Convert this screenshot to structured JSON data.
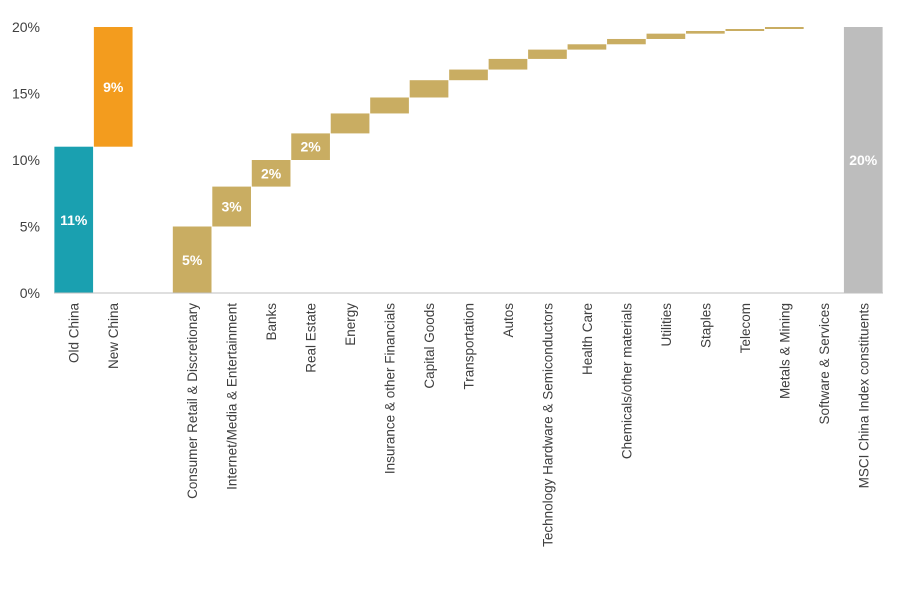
{
  "chart_data": {
    "type": "bar",
    "subtype": "waterfall",
    "ylim": [
      0,
      20
    ],
    "y_ticks": [
      "0%",
      "5%",
      "10%",
      "15%",
      "20%"
    ],
    "y_tick_values": [
      0,
      5,
      10,
      15,
      20
    ],
    "grid": false,
    "categories": [
      "Old China",
      "New China",
      "",
      "Consumer Retail & Discretionary",
      "Internet/Media & Entertainment",
      "Banks",
      "Real Estate",
      "Energy",
      "Insurance & other Financials",
      "Capital Goods",
      "Transportation",
      "Autos",
      "Technology Hardware & Semiconductors",
      "Health Care",
      "Chemicals/other materials",
      "Utilities",
      "Staples",
      "Telecom",
      "Metals & Mining",
      "Software & Services",
      "MSCI China Index constituents"
    ],
    "bars": [
      {
        "start": 0,
        "end": 11,
        "color": "#1aa0b0",
        "label": "11%"
      },
      {
        "start": 11,
        "end": 20,
        "color": "#f39c1e",
        "label": "9%"
      },
      null,
      {
        "start": 0,
        "end": 5,
        "color": "#c9ad62",
        "label": "5%"
      },
      {
        "start": 5,
        "end": 8,
        "color": "#c9ad62",
        "label": "3%"
      },
      {
        "start": 8,
        "end": 10,
        "color": "#c9ad62",
        "label": "2%"
      },
      {
        "start": 10,
        "end": 12,
        "color": "#c9ad62",
        "label": "2%"
      },
      {
        "start": 12,
        "end": 13.5,
        "color": "#c9ad62",
        "label": ""
      },
      {
        "start": 13.5,
        "end": 14.7,
        "color": "#c9ad62",
        "label": ""
      },
      {
        "start": 14.7,
        "end": 16,
        "color": "#c9ad62",
        "label": ""
      },
      {
        "start": 16,
        "end": 16.8,
        "color": "#c9ad62",
        "label": ""
      },
      {
        "start": 16.8,
        "end": 17.6,
        "color": "#c9ad62",
        "label": ""
      },
      {
        "start": 17.6,
        "end": 18.3,
        "color": "#c9ad62",
        "label": ""
      },
      {
        "start": 18.3,
        "end": 18.7,
        "color": "#c9ad62",
        "label": ""
      },
      {
        "start": 18.7,
        "end": 19.1,
        "color": "#c9ad62",
        "label": ""
      },
      {
        "start": 19.1,
        "end": 19.5,
        "color": "#c9ad62",
        "label": ""
      },
      {
        "start": 19.5,
        "end": 19.7,
        "color": "#c9ad62",
        "label": ""
      },
      {
        "start": 19.7,
        "end": 19.85,
        "color": "#c9ad62",
        "label": ""
      },
      {
        "start": 19.85,
        "end": 20,
        "color": "#c9ad62",
        "label": ""
      },
      {
        "start": 20,
        "end": 20,
        "color": "#c9ad62",
        "label": ""
      },
      {
        "start": 0,
        "end": 20,
        "color": "#bdbdbd",
        "label": "20%"
      }
    ],
    "axis_color": "#bfbfbf"
  }
}
